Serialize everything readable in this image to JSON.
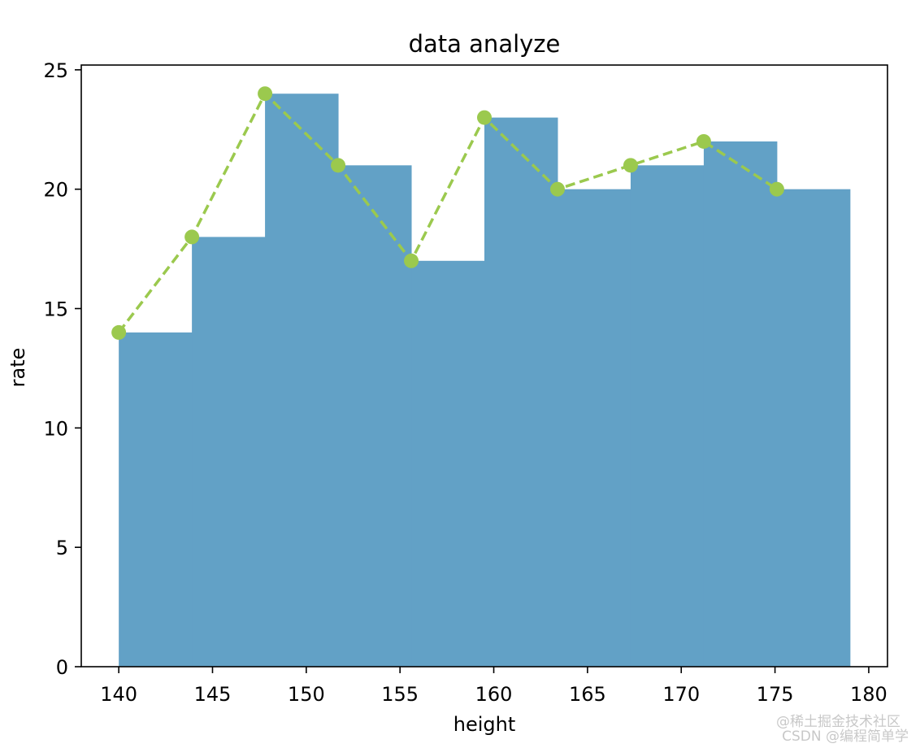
{
  "chart_data": {
    "type": "bar",
    "title": "data analyze",
    "xlabel": "height",
    "ylabel": "rate",
    "xlim": [
      138,
      181
    ],
    "ylim": [
      0,
      25.2
    ],
    "xticks": [
      140,
      145,
      150,
      155,
      160,
      165,
      170,
      175,
      180
    ],
    "yticks": [
      0,
      5,
      10,
      15,
      20,
      25
    ],
    "grid": false,
    "bin_edges": [
      140,
      143.9,
      147.8,
      151.7,
      155.6,
      159.5,
      163.4,
      167.3,
      171.2,
      175.1,
      179
    ],
    "bar_color": "#62a1c6",
    "series": [
      {
        "type": "histogram",
        "values": [
          14,
          18,
          24,
          21,
          17,
          23,
          20,
          21,
          22,
          20
        ]
      },
      {
        "type": "line",
        "style": "dashed",
        "marker": "circle",
        "color": "#9bc94e",
        "x": [
          140,
          143.9,
          147.8,
          151.7,
          155.6,
          159.5,
          163.4,
          167.3,
          171.2,
          175.1
        ],
        "y": [
          14,
          18,
          24,
          21,
          17,
          23,
          20,
          21,
          22,
          20
        ]
      }
    ]
  },
  "watermark": {
    "line1": "@稀土掘金技术社区",
    "line2": "CSDN @编程简单学"
  }
}
